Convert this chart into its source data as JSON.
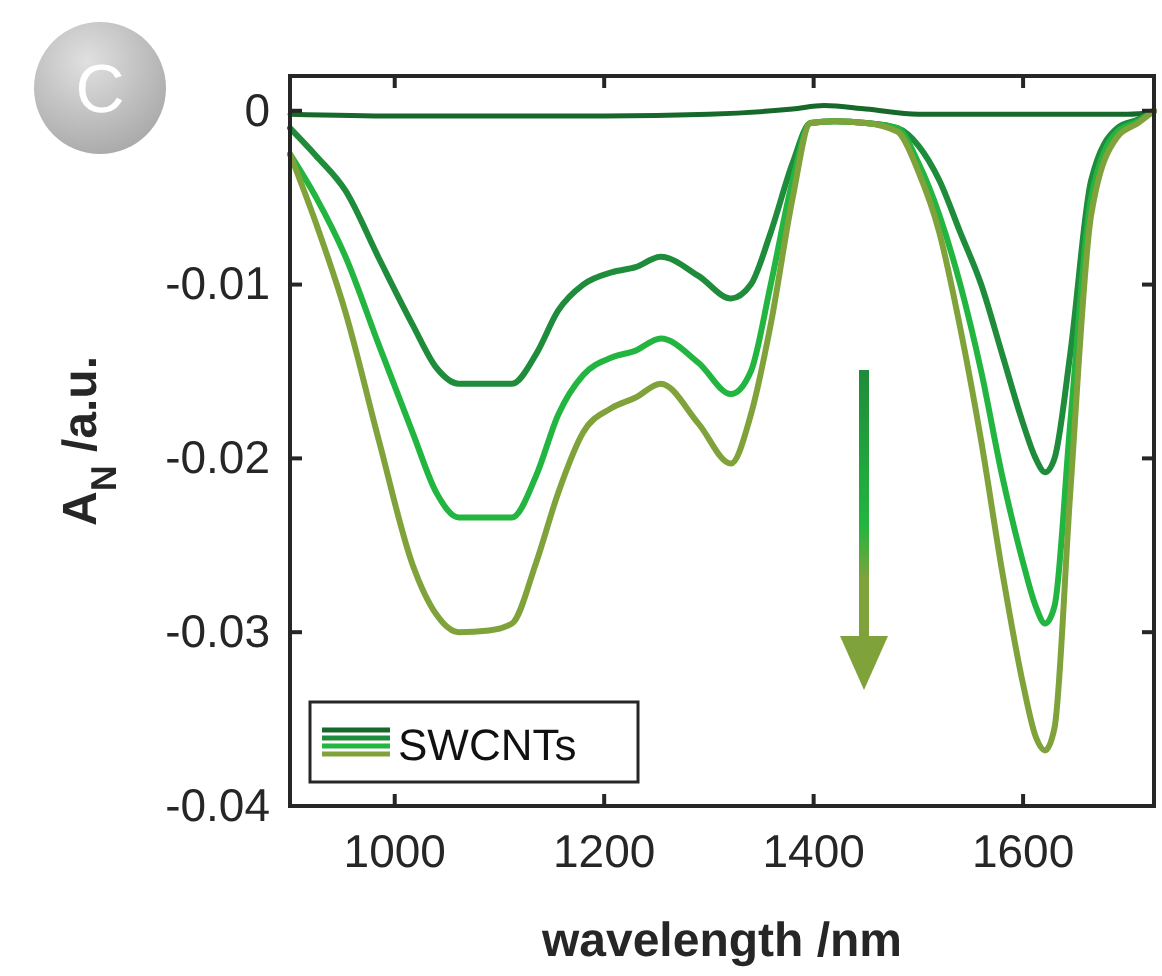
{
  "chart_data": {
    "type": "line",
    "xlabel": "wavelength /nm",
    "ylabel": "A$_{N}$ /a.u.",
    "legend": "bottom left",
    "annotations": [
      "C"
    ],
    "xlim": [
      900,
      1725
    ],
    "ylim": [
      -0.04,
      0.002
    ],
    "xticks": [
      1000,
      1200,
      1400,
      1600
    ],
    "yticks": [
      0,
      -0.01,
      -0.02,
      -0.03,
      -0.04
    ],
    "grid": false,
    "series": [
      {
        "name": "SWCNTs",
        "color": "#16692a",
        "x": [
          900,
          1000,
          1100,
          1200,
          1300,
          1380,
          1410,
          1450,
          1500,
          1600,
          1700,
          1725
        ],
        "values": [
          -0.0002,
          -0.0003,
          -0.0003,
          -0.0003,
          -0.0002,
          0.0001,
          0.0003,
          0.0001,
          -0.0002,
          -0.0002,
          -0.0002,
          -0.0001
        ]
      },
      {
        "color": "#1e8c3a",
        "x": [
          900,
          925,
          953,
          985,
          1017,
          1040,
          1061,
          1090,
          1112,
          1135,
          1156,
          1180,
          1207,
          1230,
          1254,
          1290,
          1321,
          1340,
          1359,
          1380,
          1397,
          1420,
          1450,
          1480,
          1500,
          1520,
          1540,
          1560,
          1580,
          1600,
          1612,
          1621,
          1630,
          1645,
          1665,
          1690,
          1710,
          1725
        ],
        "values": [
          -0.001,
          -0.0026,
          -0.0046,
          -0.0085,
          -0.0123,
          -0.0148,
          -0.0157,
          -0.0157,
          -0.0157,
          -0.014,
          -0.0115,
          -0.01,
          -0.0093,
          -0.009,
          -0.0084,
          -0.0095,
          -0.0108,
          -0.01,
          -0.007,
          -0.003,
          -0.0007,
          -0.0006,
          -0.0007,
          -0.001,
          -0.002,
          -0.004,
          -0.007,
          -0.01,
          -0.014,
          -0.018,
          -0.02,
          -0.0208,
          -0.02,
          -0.014,
          -0.004,
          -0.001,
          -0.0005,
          0
        ]
      },
      {
        "color": "#22b540",
        "x": [
          900,
          925,
          953,
          985,
          1017,
          1040,
          1061,
          1090,
          1112,
          1135,
          1156,
          1180,
          1207,
          1230,
          1254,
          1290,
          1321,
          1340,
          1359,
          1380,
          1397,
          1420,
          1450,
          1480,
          1500,
          1520,
          1540,
          1560,
          1580,
          1600,
          1612,
          1621,
          1630,
          1645,
          1665,
          1690,
          1710,
          1725
        ],
        "values": [
          -0.0025,
          -0.005,
          -0.0084,
          -0.0135,
          -0.0185,
          -0.022,
          -0.0234,
          -0.0234,
          -0.0234,
          -0.021,
          -0.0175,
          -0.0152,
          -0.0142,
          -0.0138,
          -0.0131,
          -0.0145,
          -0.0163,
          -0.015,
          -0.01,
          -0.004,
          -0.0007,
          -0.0006,
          -0.0007,
          -0.001,
          -0.003,
          -0.006,
          -0.01,
          -0.015,
          -0.021,
          -0.026,
          -0.0285,
          -0.0295,
          -0.0285,
          -0.018,
          -0.005,
          -0.0012,
          -0.0006,
          0
        ]
      },
      {
        "color": "#7fa33a",
        "x": [
          900,
          925,
          953,
          985,
          1017,
          1040,
          1061,
          1090,
          1112,
          1135,
          1156,
          1180,
          1207,
          1230,
          1254,
          1290,
          1321,
          1340,
          1359,
          1380,
          1397,
          1420,
          1450,
          1480,
          1500,
          1520,
          1540,
          1560,
          1580,
          1600,
          1612,
          1621,
          1630,
          1645,
          1665,
          1690,
          1710,
          1725
        ],
        "values": [
          -0.0025,
          -0.0065,
          -0.0116,
          -0.019,
          -0.0261,
          -0.029,
          -0.03,
          -0.0299,
          -0.0295,
          -0.026,
          -0.022,
          -0.0185,
          -0.0171,
          -0.0165,
          -0.0157,
          -0.018,
          -0.0203,
          -0.0175,
          -0.0123,
          -0.005,
          -0.0007,
          -0.0006,
          -0.0007,
          -0.0012,
          -0.0035,
          -0.007,
          -0.0125,
          -0.019,
          -0.0265,
          -0.033,
          -0.036,
          -0.0368,
          -0.0355,
          -0.022,
          -0.006,
          -0.0015,
          -0.0007,
          0
        ]
      }
    ]
  }
}
